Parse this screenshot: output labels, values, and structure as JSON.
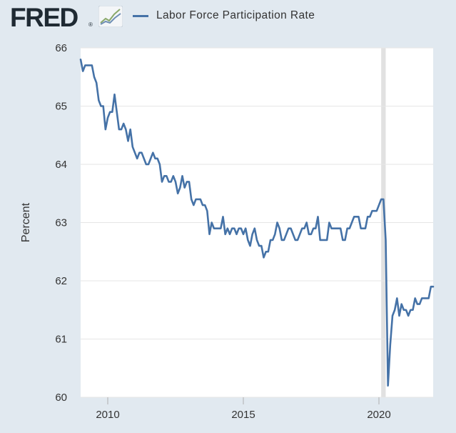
{
  "header": {
    "logo_text": "FRED",
    "logo_mark": "®",
    "logo_icon": "line-chart-icon",
    "legend_label": "Labor Force Participation Rate"
  },
  "colors": {
    "background": "#e1e9f0",
    "plot_background": "#ffffff",
    "line": "#4572a7",
    "recession": "#e1e1e1",
    "grid": "#e6e6e6"
  },
  "chart_data": {
    "type": "line",
    "ylabel": "Percent",
    "xlabel": "",
    "ylim": [
      60,
      66
    ],
    "xlim": [
      "2009-01",
      "2022-01"
    ],
    "yticks": [
      60,
      61,
      62,
      63,
      64,
      65,
      66
    ],
    "xticks": [
      {
        "label": "2010",
        "date": "2010-01"
      },
      {
        "label": "2015",
        "date": "2015-01"
      },
      {
        "label": "2020",
        "date": "2020-01"
      }
    ],
    "grid": true,
    "legend_position": "top",
    "recession_shading": [
      {
        "start": "2020-02",
        "end": "2020-04"
      }
    ],
    "series": [
      {
        "name": "Labor Force Participation Rate",
        "start": "2009-01",
        "frequency": "monthly",
        "values": [
          65.8,
          65.6,
          65.7,
          65.7,
          65.7,
          65.7,
          65.5,
          65.4,
          65.1,
          65.0,
          65.0,
          64.6,
          64.8,
          64.9,
          64.9,
          65.2,
          64.9,
          64.6,
          64.6,
          64.7,
          64.6,
          64.4,
          64.6,
          64.3,
          64.2,
          64.1,
          64.2,
          64.2,
          64.1,
          64.0,
          64.0,
          64.1,
          64.2,
          64.1,
          64.1,
          64.0,
          63.7,
          63.8,
          63.8,
          63.7,
          63.7,
          63.8,
          63.7,
          63.5,
          63.6,
          63.8,
          63.6,
          63.7,
          63.7,
          63.4,
          63.3,
          63.4,
          63.4,
          63.4,
          63.3,
          63.3,
          63.2,
          62.8,
          63.0,
          62.9,
          62.9,
          62.9,
          62.9,
          63.1,
          62.8,
          62.9,
          62.8,
          62.9,
          62.9,
          62.8,
          62.9,
          62.9,
          62.8,
          62.9,
          62.7,
          62.6,
          62.8,
          62.9,
          62.7,
          62.6,
          62.6,
          62.4,
          62.5,
          62.5,
          62.7,
          62.7,
          62.8,
          63.0,
          62.9,
          62.7,
          62.7,
          62.8,
          62.9,
          62.9,
          62.8,
          62.7,
          62.7,
          62.8,
          62.9,
          62.9,
          63.0,
          62.8,
          62.8,
          62.9,
          62.9,
          63.1,
          62.7,
          62.7,
          62.7,
          62.7,
          63.0,
          62.9,
          62.9,
          62.9,
          62.9,
          62.9,
          62.7,
          62.7,
          62.9,
          62.9,
          63.0,
          63.1,
          63.1,
          63.1,
          62.9,
          62.9,
          62.9,
          63.1,
          63.1,
          63.2,
          63.2,
          63.2,
          63.3,
          63.4,
          63.4,
          62.7,
          60.2,
          60.9,
          61.4,
          61.5,
          61.7,
          61.4,
          61.6,
          61.5,
          61.5,
          61.4,
          61.5,
          61.5,
          61.7,
          61.6,
          61.6,
          61.7,
          61.7,
          61.7,
          61.7,
          61.9,
          61.9
        ]
      }
    ]
  }
}
